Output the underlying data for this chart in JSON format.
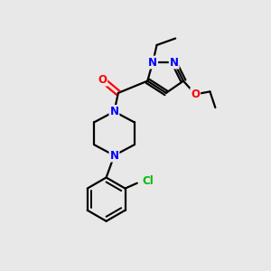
{
  "background_color": "#e8e8e8",
  "bond_color": "#000000",
  "atom_colors": {
    "N": "#0000ff",
    "O": "#ff0000",
    "Cl": "#00bb00",
    "C": "#000000"
  },
  "figsize": [
    3.0,
    3.0
  ],
  "dpi": 100
}
